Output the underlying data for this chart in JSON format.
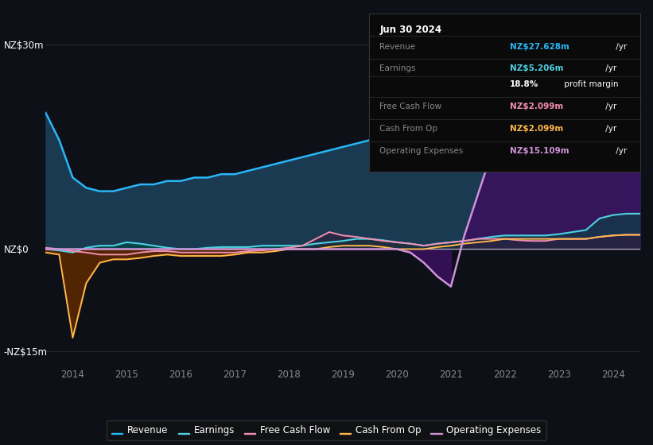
{
  "bg_color": "#0d1117",
  "plot_bg_color": "#0d1117",
  "years": [
    2013.5,
    2013.75,
    2014.0,
    2014.25,
    2014.5,
    2014.75,
    2015.0,
    2015.25,
    2015.5,
    2015.75,
    2016.0,
    2016.25,
    2016.5,
    2016.75,
    2017.0,
    2017.25,
    2017.5,
    2017.75,
    2018.0,
    2018.25,
    2018.5,
    2018.75,
    2019.0,
    2019.25,
    2019.5,
    2019.75,
    2020.0,
    2020.25,
    2020.5,
    2020.75,
    2021.0,
    2021.25,
    2021.5,
    2021.75,
    2022.0,
    2022.25,
    2022.5,
    2022.75,
    2023.0,
    2023.25,
    2023.5,
    2023.75,
    2024.0,
    2024.25,
    2024.5
  ],
  "revenue": [
    20.0,
    16.0,
    10.5,
    9.0,
    8.5,
    8.5,
    9.0,
    9.5,
    9.5,
    10.0,
    10.0,
    10.5,
    10.5,
    11.0,
    11.0,
    11.5,
    12.0,
    12.5,
    13.0,
    13.5,
    14.0,
    14.5,
    15.0,
    15.5,
    16.0,
    15.5,
    15.0,
    15.5,
    16.0,
    17.0,
    18.0,
    20.0,
    22.0,
    24.5,
    26.5,
    25.5,
    23.5,
    23.0,
    23.5,
    24.5,
    25.5,
    26.5,
    27.5,
    27.6,
    27.6
  ],
  "earnings": [
    0.0,
    -0.2,
    -0.5,
    0.2,
    0.5,
    0.5,
    1.0,
    0.8,
    0.5,
    0.2,
    0.0,
    0.0,
    0.2,
    0.3,
    0.3,
    0.3,
    0.5,
    0.5,
    0.5,
    0.5,
    0.8,
    1.0,
    1.2,
    1.5,
    1.5,
    1.3,
    1.0,
    0.8,
    0.5,
    0.8,
    1.0,
    1.2,
    1.5,
    1.8,
    2.0,
    2.0,
    2.0,
    2.0,
    2.2,
    2.5,
    2.8,
    4.5,
    5.0,
    5.2,
    5.2
  ],
  "free_cash_flow": [
    0.2,
    0.0,
    -0.3,
    -0.5,
    -0.8,
    -0.8,
    -0.8,
    -0.5,
    -0.3,
    -0.3,
    -0.5,
    -0.5,
    -0.5,
    -0.5,
    -0.5,
    -0.3,
    -0.2,
    0.0,
    0.2,
    0.5,
    1.5,
    2.5,
    2.0,
    1.8,
    1.5,
    1.2,
    1.0,
    0.8,
    0.5,
    0.8,
    1.0,
    1.2,
    1.5,
    1.5,
    1.5,
    1.3,
    1.2,
    1.2,
    1.5,
    1.5,
    1.5,
    1.8,
    2.0,
    2.1,
    2.1
  ],
  "cash_from_op": [
    -0.5,
    -0.8,
    -13.0,
    -5.0,
    -2.0,
    -1.5,
    -1.5,
    -1.3,
    -1.0,
    -0.8,
    -1.0,
    -1.0,
    -1.0,
    -1.0,
    -0.8,
    -0.5,
    -0.5,
    -0.3,
    0.0,
    0.0,
    0.0,
    0.3,
    0.5,
    0.5,
    0.5,
    0.3,
    0.0,
    0.0,
    0.0,
    0.3,
    0.5,
    0.8,
    1.0,
    1.2,
    1.5,
    1.5,
    1.5,
    1.5,
    1.5,
    1.5,
    1.5,
    1.8,
    2.0,
    2.1,
    2.1
  ],
  "operating_expenses": [
    0.0,
    0.0,
    0.0,
    0.0,
    0.0,
    0.0,
    0.0,
    0.0,
    0.0,
    0.0,
    0.0,
    0.0,
    0.0,
    0.0,
    0.0,
    0.0,
    0.0,
    0.0,
    0.0,
    0.0,
    0.0,
    0.0,
    0.0,
    0.0,
    0.0,
    0.0,
    0.0,
    -0.5,
    -2.0,
    -4.0,
    -5.5,
    2.0,
    8.0,
    14.0,
    20.0,
    22.5,
    18.0,
    15.5,
    15.0,
    14.5,
    14.5,
    14.5,
    15.0,
    15.1,
    15.1
  ],
  "revenue_color": "#29b6f6",
  "earnings_color": "#4dd0e1",
  "free_cash_flow_color": "#f48fb1",
  "cash_from_op_color": "#ffb74d",
  "operating_expenses_color": "#ce93d8",
  "ylim_min": -17,
  "ylim_max": 32,
  "y_ticks": [
    -15,
    0,
    30
  ],
  "y_tick_labels": [
    "-NZ$15m",
    "NZ$0",
    "NZ$30m"
  ],
  "x_ticks": [
    2014,
    2015,
    2016,
    2017,
    2018,
    2019,
    2020,
    2021,
    2022,
    2023,
    2024
  ],
  "legend_items": [
    "Revenue",
    "Earnings",
    "Free Cash Flow",
    "Cash From Op",
    "Operating Expenses"
  ],
  "legend_colors": [
    "#29b6f6",
    "#4dd0e1",
    "#f48fb1",
    "#ffb74d",
    "#ce93d8"
  ],
  "infobox_title": "Jun 30 2024",
  "infobox_rows": [
    {
      "label": "Revenue",
      "value_colored": "NZ$27.628m",
      "value_plain": " /yr",
      "value_color": "#29b6f6"
    },
    {
      "label": "Earnings",
      "value_colored": "NZ$5.206m",
      "value_plain": " /yr",
      "value_color": "#4dd0e1"
    },
    {
      "label": "",
      "value_colored": "18.8%",
      "value_plain": " profit margin",
      "value_color": "#ffffff",
      "bold": true
    },
    {
      "label": "Free Cash Flow",
      "value_colored": "NZ$2.099m",
      "value_plain": " /yr",
      "value_color": "#f48fb1"
    },
    {
      "label": "Cash From Op",
      "value_colored": "NZ$2.099m",
      "value_plain": " /yr",
      "value_color": "#ffb74d"
    },
    {
      "label": "Operating Expenses",
      "value_colored": "NZ$15.109m",
      "value_plain": " /yr",
      "value_color": "#ce93d8"
    }
  ]
}
